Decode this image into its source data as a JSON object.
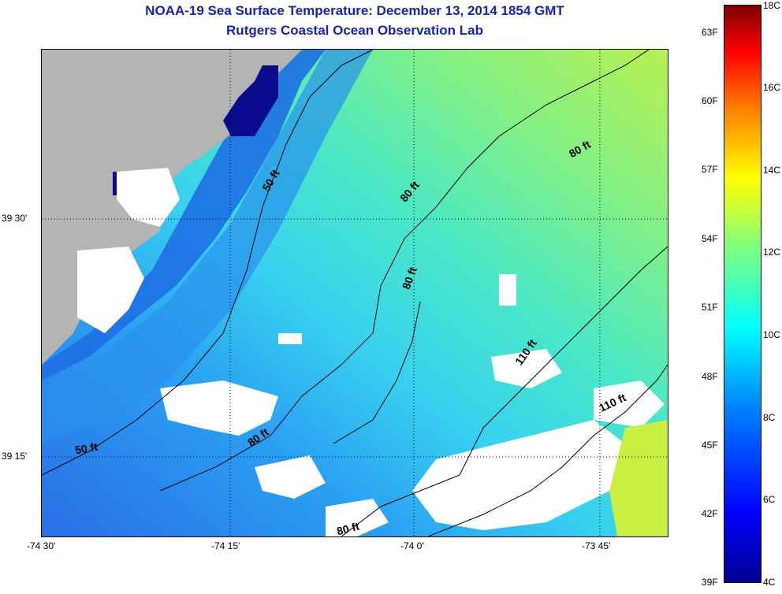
{
  "title": {
    "line1": "NOAA-19 Sea Surface Temperature:  December 13, 2014 1854 GMT",
    "line2": "Rutgers Coastal Ocean Observation Lab"
  },
  "map": {
    "x_ticks": [
      "-74 30'",
      "-74 15'",
      "-74 0'",
      "-73 45'"
    ],
    "y_ticks": [
      "39 30'",
      "39 15'"
    ],
    "contour_labels": [
      "50 ft",
      "50 ft",
      "80 ft",
      "80 ft",
      "80 ft",
      "80 ft",
      "80 ft",
      "110 ft",
      "110 ft"
    ],
    "colors": {
      "land": "#b4b4b4",
      "cloud": "#ffffff",
      "cold": "#0a0a8c",
      "coast": "#3070e0",
      "mid": "#38c8ff",
      "warm": "#a0f060"
    }
  },
  "colorbar": {
    "fahrenheit": [
      "63F",
      "60F",
      "57F",
      "54F",
      "51F",
      "48F",
      "45F",
      "42F",
      "39F"
    ],
    "celsius": [
      "18C",
      "16C",
      "14C",
      "12C",
      "10C",
      "8C",
      "6C",
      "4C"
    ]
  }
}
